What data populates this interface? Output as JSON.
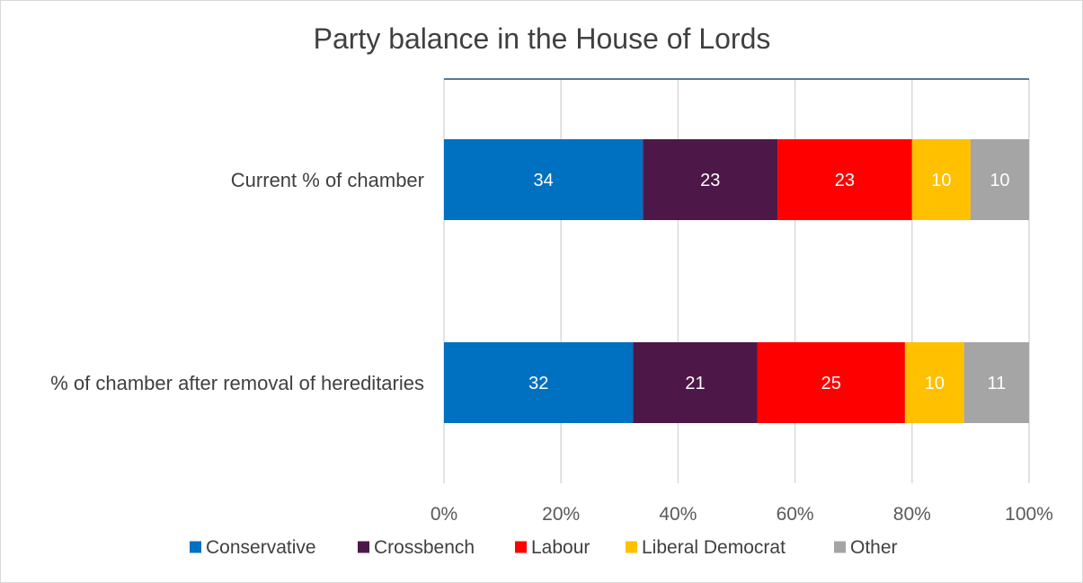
{
  "chart_data": {
    "type": "bar",
    "orientation": "horizontal",
    "stacked": "percent",
    "title": "Party balance in the House of Lords",
    "xlabel": "",
    "ylabel": "",
    "xlim": [
      0,
      100
    ],
    "grid": true,
    "legend_position": "bottom",
    "categories": [
      "Current % of chamber",
      "% of chamber after removal  of hereditaries"
    ],
    "x_ticks": [
      "0%",
      "20%",
      "40%",
      "60%",
      "80%",
      "100%"
    ],
    "series": [
      {
        "name": "Conservative",
        "color": "#0070c0",
        "values": [
          34,
          32
        ]
      },
      {
        "name": "Crossbench",
        "color": "#4d1848",
        "values": [
          23,
          21
        ]
      },
      {
        "name": "Labour",
        "color": "#ff0000",
        "values": [
          23,
          25
        ]
      },
      {
        "name": "Liberal Democrat",
        "color": "#ffc000",
        "values": [
          10,
          10
        ]
      },
      {
        "name": "Other",
        "color": "#a5a5a5",
        "values": [
          10,
          11
        ]
      }
    ]
  }
}
